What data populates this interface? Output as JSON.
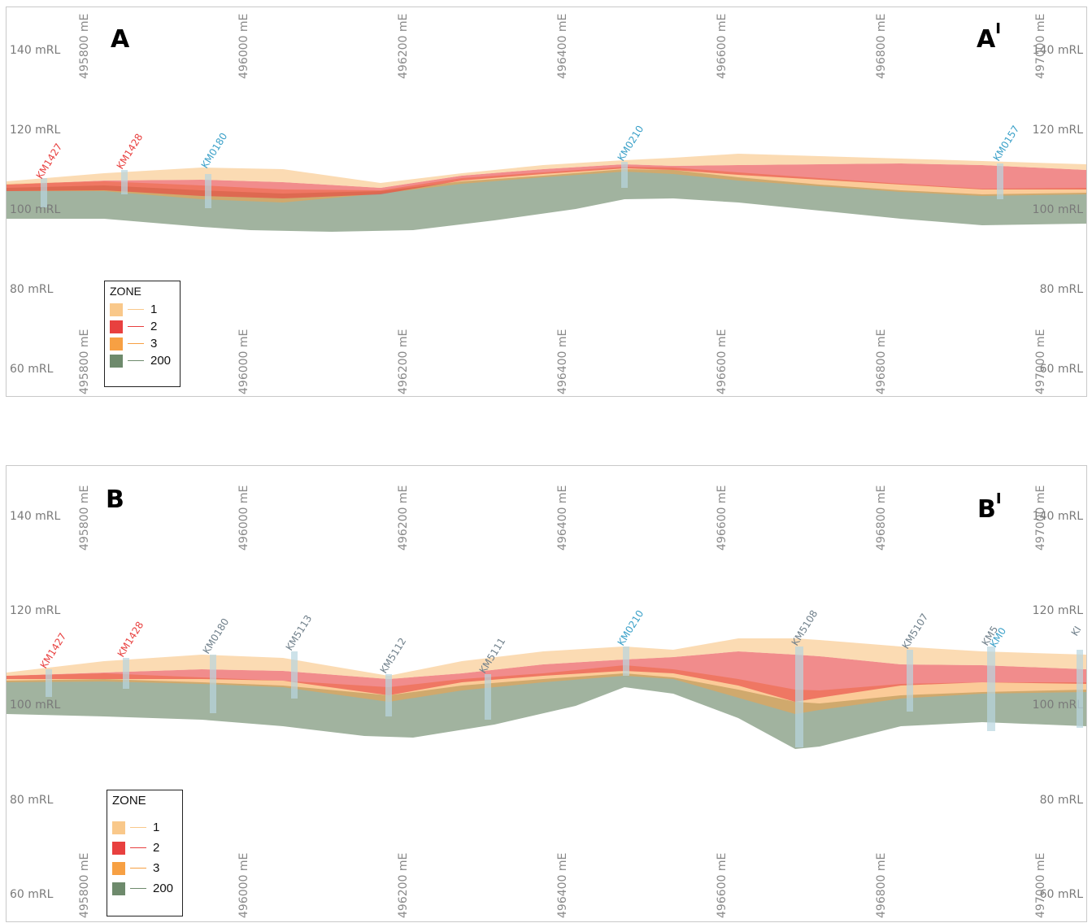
{
  "panels": [
    {
      "corner_left": "A",
      "corner_right": "A",
      "corner_right_mark": "I",
      "y_labels": [
        "140 mRL",
        "120 mRL",
        "100 mRL",
        "80 mRL",
        "60 mRL"
      ],
      "x_labels": [
        "495800 mE",
        "496000 mE",
        "496200 mE",
        "496400 mE",
        "496600 mE",
        "496800 mE",
        "497000 mE"
      ],
      "holes": [
        {
          "id": "KM1427",
          "color": "#e8403f"
        },
        {
          "id": "KM1428",
          "color": "#e8403f"
        },
        {
          "id": "KM0180",
          "color": "#3aa0c8"
        },
        {
          "id": "KM0210",
          "color": "#3aa0c8"
        },
        {
          "id": "KM0157",
          "color": "#3aa0c8"
        }
      ]
    },
    {
      "corner_left": "B",
      "corner_right": "B",
      "corner_right_mark": "I",
      "y_labels": [
        "140 mRL",
        "120 mRL",
        "100 mRL",
        "80 mRL",
        "60 mRL"
      ],
      "x_labels": [
        "495800 mE",
        "496000 mE",
        "496200 mE",
        "496400 mE",
        "496600 mE",
        "496800 mE",
        "497000 mE"
      ],
      "holes": [
        {
          "id": "KM1427",
          "color": "#e8403f"
        },
        {
          "id": "KM1428",
          "color": "#e8403f"
        },
        {
          "id": "KM0180",
          "color": "#6f7f8a"
        },
        {
          "id": "KM5113",
          "color": "#6f7f8a"
        },
        {
          "id": "KM5112",
          "color": "#6f7f8a"
        },
        {
          "id": "KM5111",
          "color": "#6f7f8a"
        },
        {
          "id": "KM0210",
          "color": "#3aa0c8"
        },
        {
          "id": "KM5108",
          "color": "#6f7f8a"
        },
        {
          "id": "KM5107",
          "color": "#6f7f8a"
        },
        {
          "id": "KM5",
          "color": "#6f7f8a"
        },
        {
          "id": "KM0",
          "color": "#3aa0c8"
        },
        {
          "id": "KI",
          "color": "#6f7f8a"
        }
      ]
    }
  ],
  "legend": {
    "title": "ZONE",
    "items": [
      {
        "label": "1",
        "color": "#f9c88a"
      },
      {
        "label": "2",
        "color": "#e8403f"
      },
      {
        "label": "3",
        "color": "#f7a043"
      },
      {
        "label": "200",
        "color": "#6e8a6c"
      }
    ]
  },
  "zone_colors": {
    "zone1": "#f9c88a",
    "zone2": "#e8403f",
    "zone3": "#f7a043",
    "zone200": "#6e8a6c"
  }
}
